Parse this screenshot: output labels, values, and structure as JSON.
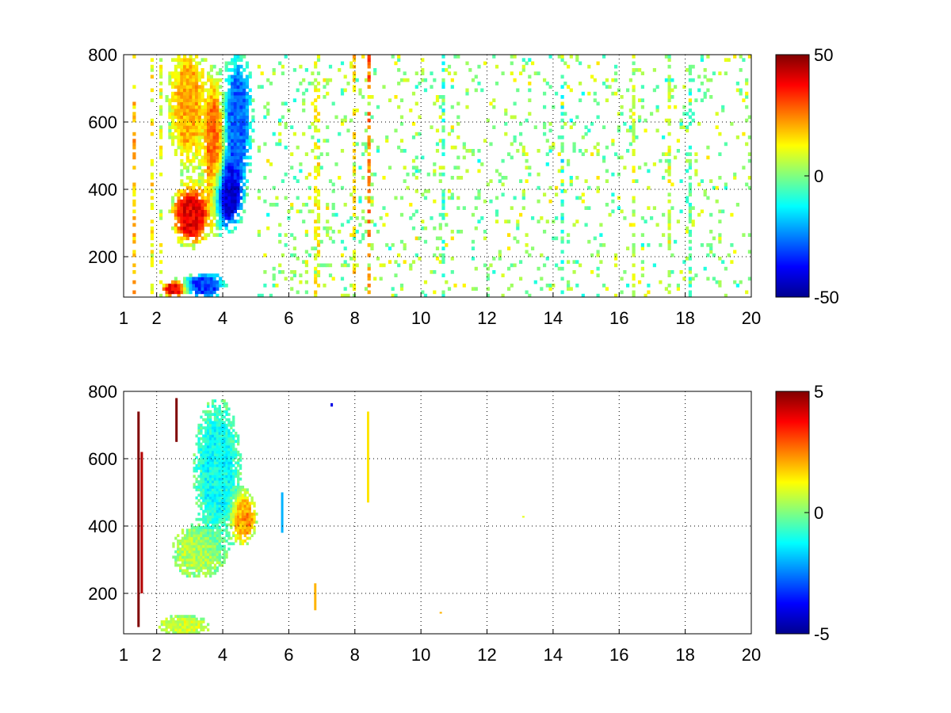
{
  "chart_data": [
    {
      "type": "heatmap",
      "x_ticks": [
        "1",
        "2",
        "4",
        "6",
        "8",
        "10",
        "12",
        "14",
        "16",
        "18",
        "20"
      ],
      "x_tick_values": [
        1,
        2,
        4,
        6,
        8,
        10,
        12,
        14,
        16,
        18,
        20
      ],
      "y_ticks": [
        "200",
        "400",
        "600",
        "800"
      ],
      "y_tick_values": [
        200,
        400,
        600,
        800
      ],
      "xlim": [
        1,
        20
      ],
      "ylim": [
        80,
        800
      ],
      "grid": true,
      "grid_style": "dotted",
      "colormap": "jet",
      "colorbar": {
        "min": -50,
        "max": 50,
        "tick_labels": [
          "50",
          "0",
          "-50"
        ],
        "tick_values": [
          50,
          0,
          -50
        ],
        "placement": "right"
      },
      "features": [
        {
          "x": 3.0,
          "y": 320,
          "value": 40,
          "spread_x": 0.45,
          "spread_y": 70
        },
        {
          "x": 2.9,
          "y": 650,
          "value": 20,
          "spread_x": 0.45,
          "spread_y": 150
        },
        {
          "x": 3.7,
          "y": 520,
          "value": 28,
          "spread_x": 0.25,
          "spread_y": 160
        },
        {
          "x": 4.1,
          "y": 380,
          "value": -45,
          "spread_x": 0.35,
          "spread_y": 80
        },
        {
          "x": 4.4,
          "y": 600,
          "value": -28,
          "spread_x": 0.35,
          "spread_y": 160
        },
        {
          "x": 2.5,
          "y": 100,
          "value": 42,
          "spread_x": 0.3,
          "spread_y": 20
        },
        {
          "x": 3.4,
          "y": 110,
          "value": -32,
          "spread_x": 0.5,
          "spread_y": 30
        }
      ],
      "noise_columns": [
        {
          "x": 1.3,
          "value": 18
        },
        {
          "x": 1.8,
          "value": 12
        },
        {
          "x": 2.1,
          "value": 10
        },
        {
          "x": 6.8,
          "value": 12
        },
        {
          "x": 7.9,
          "value": 15
        },
        {
          "x": 8.4,
          "value": 25
        },
        {
          "x": 10.6,
          "value": -6
        },
        {
          "x": 14.2,
          "value": -8
        },
        {
          "x": 16.4,
          "value": 6
        },
        {
          "x": 17.5,
          "value": 8
        },
        {
          "x": 18.1,
          "value": -5
        }
      ]
    },
    {
      "type": "heatmap",
      "x_ticks": [
        "1",
        "2",
        "4",
        "6",
        "8",
        "10",
        "12",
        "14",
        "16",
        "18",
        "20"
      ],
      "x_tick_values": [
        1,
        2,
        4,
        6,
        8,
        10,
        12,
        14,
        16,
        18,
        20
      ],
      "y_ticks": [
        "200",
        "400",
        "600",
        "800"
      ],
      "y_tick_values": [
        200,
        400,
        600,
        800
      ],
      "xlim": [
        1,
        20
      ],
      "ylim": [
        80,
        800
      ],
      "grid": true,
      "grid_style": "dotted",
      "colormap": "jet",
      "colorbar": {
        "min": -5,
        "max": 5,
        "tick_labels": [
          "5",
          "0",
          "-5"
        ],
        "tick_values": [
          5,
          0,
          -5
        ],
        "placement": "right"
      },
      "features": [
        {
          "x": 3.2,
          "y": 320,
          "value": 0.5,
          "spread_x": 0.6,
          "spread_y": 60
        },
        {
          "x": 3.8,
          "y": 560,
          "value": -1.2,
          "spread_x": 0.55,
          "spread_y": 170
        },
        {
          "x": 4.6,
          "y": 420,
          "value": 2.5,
          "spread_x": 0.3,
          "spread_y": 60
        },
        {
          "x": 2.8,
          "y": 100,
          "value": 0.8,
          "spread_x": 0.6,
          "spread_y": 25
        }
      ],
      "streaks": [
        {
          "x": 1.45,
          "y0": 100,
          "y1": 740,
          "value": 5
        },
        {
          "x": 1.55,
          "y0": 200,
          "y1": 620,
          "value": 4.5
        },
        {
          "x": 2.6,
          "y0": 650,
          "y1": 780,
          "value": 5
        },
        {
          "x": 5.8,
          "y0": 380,
          "y1": 500,
          "value": -2
        },
        {
          "x": 6.8,
          "y0": 150,
          "y1": 230,
          "value": 2
        },
        {
          "x": 8.4,
          "y0": 470,
          "y1": 740,
          "value": 1.5
        },
        {
          "x": 7.3,
          "y0": 755,
          "y1": 765,
          "value": -4
        },
        {
          "x": 13.1,
          "y0": 425,
          "y1": 430,
          "value": 1
        },
        {
          "x": 10.6,
          "y0": 140,
          "y1": 145,
          "value": 2
        }
      ]
    }
  ]
}
